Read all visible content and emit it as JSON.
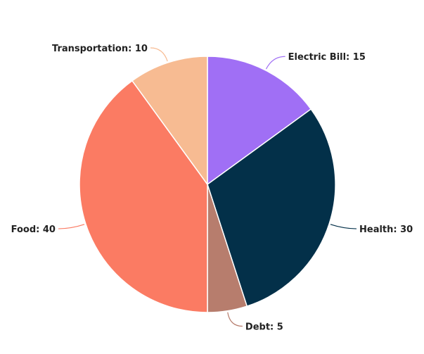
{
  "chart_data": {
    "type": "pie",
    "slices": [
      {
        "label": "Electric Bill",
        "value": 15,
        "color": "#a06ff5"
      },
      {
        "label": "Health",
        "value": 30,
        "color": "#033049"
      },
      {
        "label": "Debt",
        "value": 5,
        "color": "#b77d6d"
      },
      {
        "label": "Food",
        "value": 40,
        "color": "#fb7b63"
      },
      {
        "label": "Transportation",
        "value": 10,
        "color": "#f7bb92"
      }
    ],
    "label_format": "{label}: {value}"
  }
}
